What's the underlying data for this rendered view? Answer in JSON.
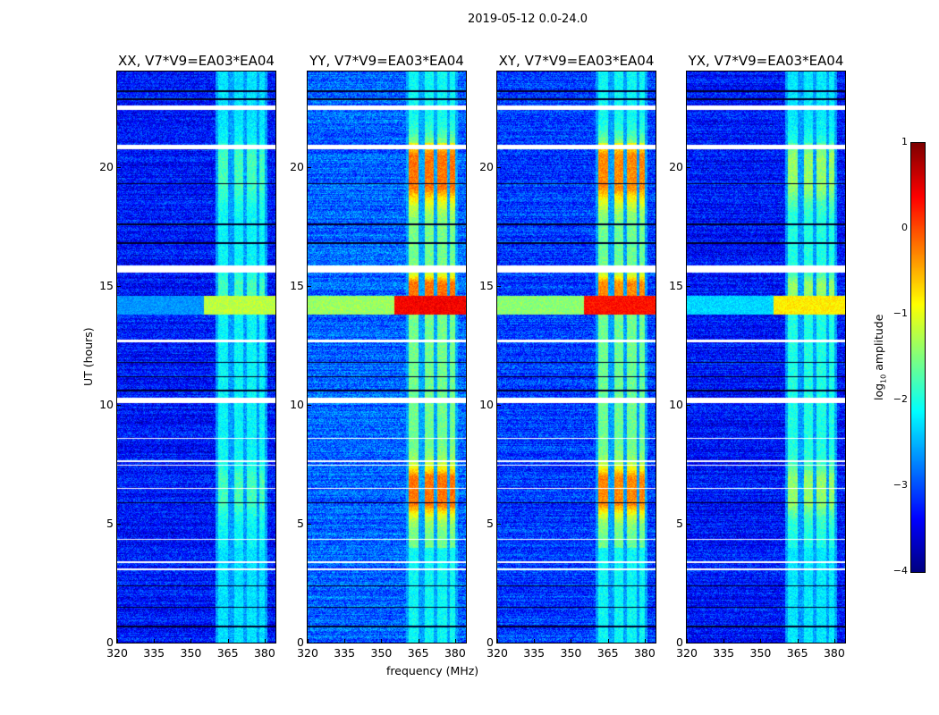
{
  "suptitle": "2019-05-12 0.0-24.0",
  "xlabel": "frequency (MHz)",
  "ylabel": "UT (hours)",
  "chart_data": {
    "type": "heatmap",
    "xlim": [
      320,
      384.4
    ],
    "ylim": [
      0,
      24
    ],
    "xticks": [
      "320",
      "335",
      "350",
      "365",
      "380"
    ],
    "xtick_values": [
      320,
      335,
      350,
      365,
      380
    ],
    "yticks": [
      "0",
      "5",
      "10",
      "15",
      "20"
    ],
    "ytick_values": [
      0,
      5,
      10,
      15,
      20
    ],
    "rfi_channel_blocks_mhz": [
      [
        361,
        365
      ],
      [
        367.5,
        371.3
      ],
      [
        372.7,
        376.7
      ],
      [
        377.8,
        380
      ]
    ],
    "flagged_ut_gaps": [
      [
        22.4,
        22.6
      ],
      [
        20.75,
        20.95
      ],
      [
        15.55,
        15.85
      ],
      [
        12.65,
        12.75
      ],
      [
        10.08,
        10.3
      ]
    ],
    "thin_flag_lines_ut": [
      8.6,
      7.65,
      7.47,
      6.5,
      4.35,
      3.4,
      3.1
    ],
    "dark_lines_ut": [
      23.2,
      22.85,
      19.3,
      17.6,
      16.8,
      11.8,
      11.2,
      10.6,
      5.9,
      2.4,
      1.5,
      0.7
    ],
    "broadband_rfi_ut": [
      13.8,
      14.6
    ],
    "panels": [
      {
        "title": "XX, V7*V9=EA03*EA04",
        "peak_log_amp": -1.3,
        "background_log_amp": -3.3
      },
      {
        "title": "YY, V7*V9=EA03*EA04",
        "peak_log_amp": 0.3,
        "background_log_amp": -2.9
      },
      {
        "title": "XY, V7*V9=EA03*EA04",
        "peak_log_amp": 0.2,
        "background_log_amp": -3.1
      },
      {
        "title": "YX, V7*V9=EA03*EA04",
        "peak_log_amp": -0.9,
        "background_log_amp": -3.3
      }
    ],
    "colorbar": {
      "label": "log10 amplitude",
      "label_main": "log",
      "label_sub": "10",
      "label_rest": " amplitude",
      "range": [
        -4,
        1
      ],
      "ticks": [
        "1",
        "0",
        "−1",
        "−2",
        "−3",
        "−4"
      ],
      "tick_values": [
        1,
        0,
        -1,
        -2,
        -3,
        -4
      ],
      "colormap": "jet"
    }
  }
}
